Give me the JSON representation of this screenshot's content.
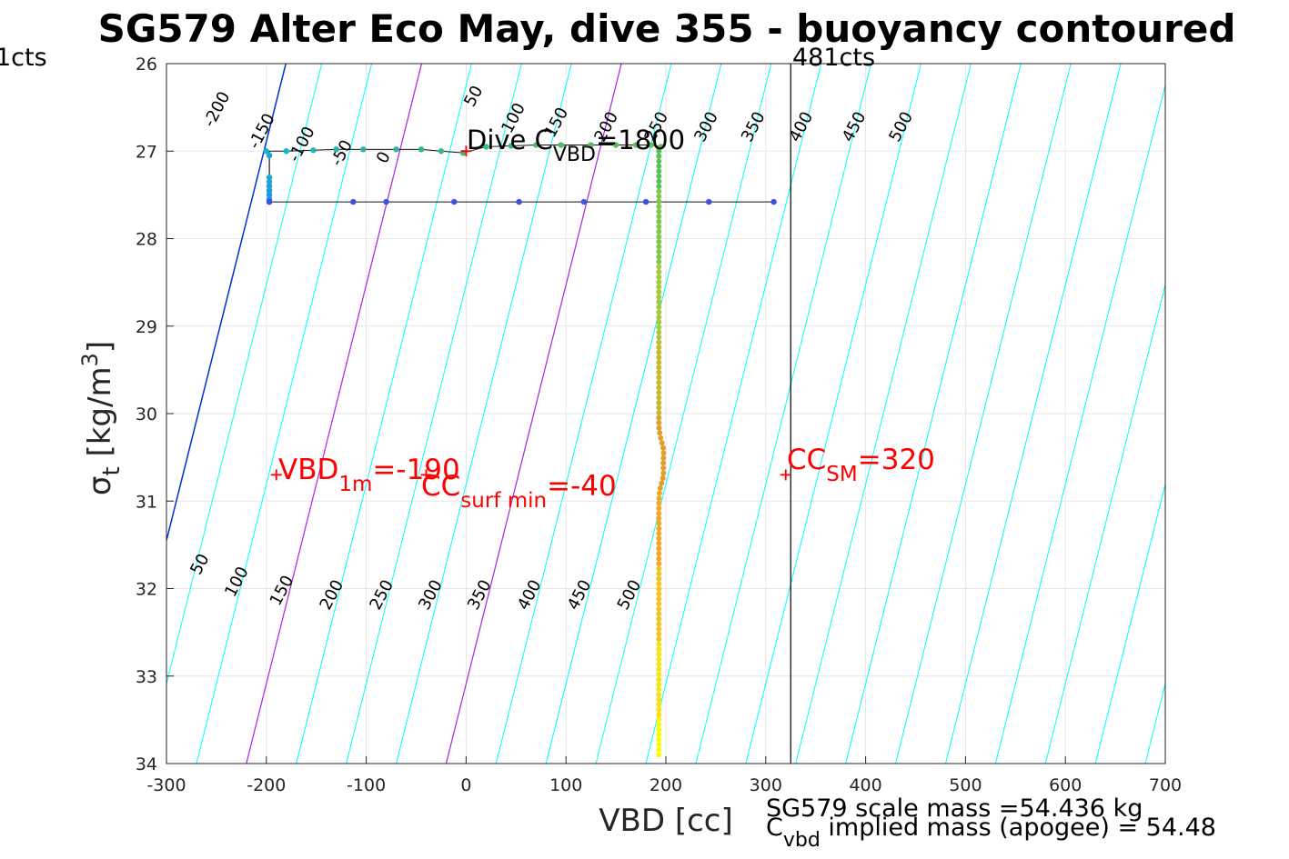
{
  "chart_data": {
    "type": "scatter",
    "title": "SG579 Alter Eco May, dive 355 - buoyancy contoured",
    "xlabel": "VBD [cc]",
    "ylabel": {
      "base": "σ",
      "sub": "t",
      "unit": " [kg/m",
      "sup": "3",
      "close": "]"
    },
    "xlim": [
      -300,
      700
    ],
    "ylim": [
      26,
      34
    ],
    "y_reversed": true,
    "grid": true,
    "x_ticks": [
      -300,
      -200,
      -100,
      0,
      100,
      200,
      300,
      400,
      500,
      600,
      700
    ],
    "y_ticks": [
      26,
      27,
      28,
      29,
      30,
      31,
      32,
      33,
      34
    ],
    "top_left_label": "1cts",
    "top_right_label": "481cts",
    "vertical_line_x": 325,
    "contour_slope": 0.0456,
    "cyan_lines": [
      -300,
      -250,
      -200,
      -150,
      -100,
      -50,
      0,
      50,
      100,
      150,
      200,
      250,
      300,
      350,
      400,
      450,
      500,
      550,
      600,
      650,
      700,
      750
    ],
    "purple_lines": [
      -200,
      0
    ],
    "blue_line": -100,
    "upper_contour_labels": [
      {
        "x": -245,
        "y": 26.55,
        "text": "-200"
      },
      {
        "x": -200,
        "y": 26.8,
        "text": "-150"
      },
      {
        "x": -160,
        "y": 26.95,
        "text": "-100"
      },
      {
        "x": -120,
        "y": 27.05,
        "text": "-50"
      },
      {
        "x": -78,
        "y": 27.1,
        "text": "0"
      },
      {
        "x": 12,
        "y": 26.4,
        "text": "50"
      },
      {
        "x": 52,
        "y": 26.65,
        "text": "100"
      },
      {
        "x": 95,
        "y": 26.7,
        "text": "150"
      },
      {
        "x": 145,
        "y": 26.75,
        "text": "200"
      },
      {
        "x": 195,
        "y": 26.75,
        "text": "250"
      },
      {
        "x": 245,
        "y": 26.75,
        "text": "300"
      },
      {
        "x": 292,
        "y": 26.75,
        "text": "350"
      },
      {
        "x": 340,
        "y": 26.75,
        "text": "400"
      },
      {
        "x": 393,
        "y": 26.75,
        "text": "450"
      },
      {
        "x": 440,
        "y": 26.75,
        "text": "500"
      }
    ],
    "lower_contour_labels": [
      {
        "x": -262,
        "y": 31.75,
        "text": "50"
      },
      {
        "x": -225,
        "y": 31.95,
        "text": "100"
      },
      {
        "x": -180,
        "y": 32.05,
        "text": "150"
      },
      {
        "x": -130,
        "y": 32.1,
        "text": "200"
      },
      {
        "x": -80,
        "y": 32.1,
        "text": "250"
      },
      {
        "x": -31,
        "y": 32.1,
        "text": "300"
      },
      {
        "x": 18,
        "y": 32.1,
        "text": "350"
      },
      {
        "x": 68,
        "y": 32.1,
        "text": "400"
      },
      {
        "x": 118,
        "y": 32.1,
        "text": "450"
      },
      {
        "x": 168,
        "y": 32.1,
        "text": "500"
      }
    ],
    "series": [
      {
        "kind": "top_track",
        "x": [
          -200,
          -180,
          -153,
          -130,
          -103,
          -70,
          -45,
          -25,
          -3,
          20,
          45,
          70,
          95,
          125,
          150,
          170,
          185,
          195
        ],
        "y": [
          27.0,
          27.0,
          26.99,
          26.98,
          26.98,
          26.98,
          26.98,
          27.0,
          27.02,
          26.95,
          26.94,
          26.93,
          26.93,
          26.93,
          26.93,
          26.93,
          26.93,
          26.95
        ],
        "colors": [
          "#1ab3c8",
          "#1ab3c8",
          "#23b5b0",
          "#23b5b0",
          "#2bb79e",
          "#2bb79e",
          "#2db79a",
          "#33b98c",
          "#36ba86",
          "#3bbb7c",
          "#40bd74",
          "#44be6c",
          "#49bf65",
          "#4dc05f",
          "#52c25a",
          "#57c355",
          "#5bc452",
          "#60c54f"
        ]
      },
      {
        "kind": "left_column",
        "x": [
          -197,
          -197,
          -197,
          -197,
          -197,
          -197,
          -197,
          -197
        ],
        "y": [
          27.05,
          27.3,
          27.35,
          27.4,
          27.45,
          27.5,
          27.55,
          27.58
        ],
        "colors": [
          "#19a8d8",
          "#19a8d8",
          "#19a8d8",
          "#1a9fe0",
          "#1a9fe0",
          "#1c95e6",
          "#1c95e6",
          "#1c95e6"
        ]
      },
      {
        "kind": "bottom_track",
        "x": [
          -197,
          -113,
          -80,
          -12,
          53,
          118,
          180,
          243,
          308
        ],
        "y": [
          27.58,
          27.58,
          27.58,
          27.58,
          27.58,
          27.58,
          27.58,
          27.58,
          27.58
        ],
        "colors": [
          "#3a53e3",
          "#3a53e3",
          "#3a53e3",
          "#3a53e3",
          "#3a53e3",
          "#3a53e3",
          "#3a53e3",
          "#3a53e3",
          "#3a53e3"
        ]
      }
    ],
    "vertical_profile": {
      "x_base": 193,
      "y_start": 27.0,
      "y_end": 33.9,
      "wiggle": [
        {
          "y": 30.4,
          "dx": 3
        },
        {
          "y": 30.7,
          "dx": 4
        },
        {
          "y": 30.5,
          "dx": 2
        }
      ],
      "color_stops": [
        "#57c355",
        "#7fc94a",
        "#a8c93d",
        "#c8b830",
        "#e0a02a",
        "#f0a924",
        "#f4c51c",
        "#f7e414",
        "#fbf80a"
      ]
    },
    "markers": [
      {
        "x": 0,
        "y": 27.0,
        "color": "#ff0000"
      },
      {
        "x": -190,
        "y": 30.7,
        "color": "#ff0000"
      },
      {
        "x": -40,
        "y": 30.7,
        "color": "#ff0000"
      },
      {
        "x": 320,
        "y": 30.7,
        "color": "#ff0000"
      }
    ],
    "annotations": {
      "dive_cvbd": {
        "pre": "Dive C",
        "sub": "VBD",
        "post": "=1800"
      },
      "vbd_1m": {
        "pre": "VBD",
        "sub": "1m",
        "post": "=-190"
      },
      "cc_surf": {
        "pre": "CC",
        "sub": "surf min",
        "post": "=-40"
      },
      "cc_sm": {
        "pre": "CC",
        "sub": "SM",
        "post": "=320"
      },
      "scale_mass": "SG579 scale mass =54.436 kg",
      "implied_mass": {
        "pre": "C",
        "sub": "vbd",
        "post": " implied mass (apogee) = 54.48"
      }
    }
  }
}
